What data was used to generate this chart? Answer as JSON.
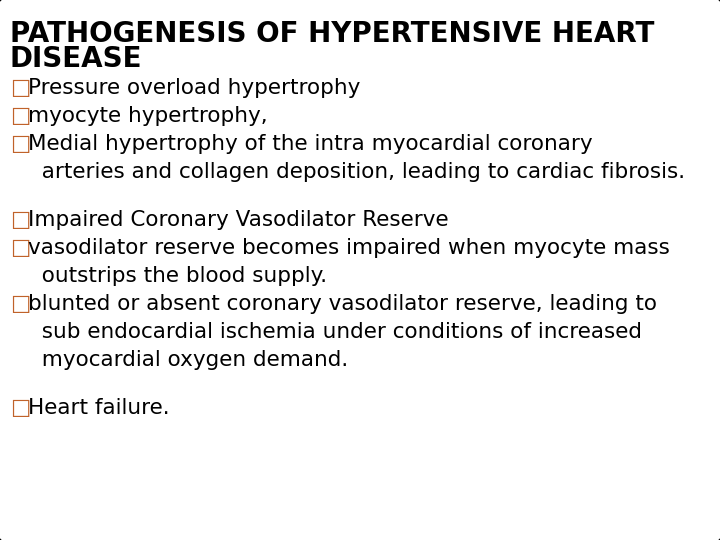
{
  "title_line1": "PATHOGENESIS OF HYPERTENSIVE HEART",
  "title_line2": "DISEASE",
  "title_fontsize": 20,
  "title_color": "#000000",
  "background_color": "#ffffff",
  "border_color": "#000000",
  "bullet_color": "#c0622a",
  "text_color": "#000000",
  "body_fontsize": 15.5,
  "bullet_char": "□",
  "lines": [
    {
      "type": "bullet",
      "text": "Pressure overload hypertrophy"
    },
    {
      "type": "bullet",
      "text": "myocyte hypertrophy,"
    },
    {
      "type": "bullet",
      "text": "Medial hypertrophy of the intra myocardial coronary"
    },
    {
      "type": "cont",
      "text": "  arteries and collagen deposition, leading to cardiac fibrosis."
    },
    {
      "type": "blank"
    },
    {
      "type": "bullet",
      "text": "Impaired Coronary Vasodilator Reserve"
    },
    {
      "type": "bullet",
      "text": "vasodilator reserve becomes impaired when myocyte mass"
    },
    {
      "type": "cont",
      "text": "  outstrips the blood supply."
    },
    {
      "type": "bullet",
      "text": "blunted or absent coronary vasodilator reserve, leading to"
    },
    {
      "type": "cont",
      "text": "  sub endocardial ischemia under conditions of increased"
    },
    {
      "type": "cont",
      "text": "  myocardial oxygen demand."
    },
    {
      "type": "blank"
    },
    {
      "type": "bullet",
      "text": "Heart failure."
    }
  ],
  "fig_width": 7.2,
  "fig_height": 5.4,
  "dpi": 100
}
